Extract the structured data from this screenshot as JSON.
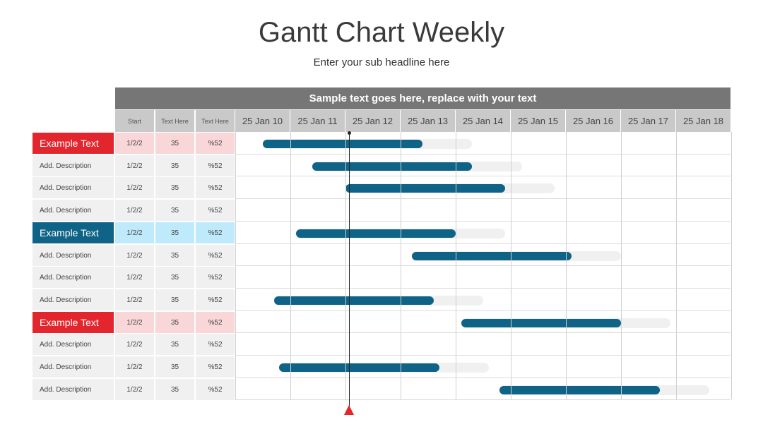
{
  "title": "Gantt Chart Weekly",
  "subtitle": "Enter your sub headline here",
  "banner": "Sample text goes here, replace with your text",
  "columns": [
    "Start",
    "Text Here",
    "Text Here"
  ],
  "colors": {
    "red": "#e3262d",
    "teal": "#0f6386",
    "pink_cells": "#f9d6d7",
    "blue_cells": "#bfeafb",
    "gray_cells": "#f0f0f0",
    "bar": "#0f6386",
    "bar_track": "#f0f0f0",
    "today_marker": "#e3262d"
  },
  "chart_data": {
    "type": "gantt",
    "x_ticks": [
      "25 Jan 10",
      "25 Jan 11",
      "25 Jan 12",
      "25 Jan 13",
      "25 Jan 14",
      "25 Jan 15",
      "25 Jan 16",
      "25 Jan 17",
      "25 Jan 18"
    ],
    "today_marker": "25 Jan 11",
    "rows": [
      {
        "label": "Example Text",
        "group": true,
        "color": "red",
        "start": "1/2/2",
        "v1": "35",
        "v2": "%52",
        "bar": [
          0.5,
          3.4
        ],
        "track": [
          0.5,
          4.3
        ]
      },
      {
        "label": "Add. Description",
        "group": false,
        "start": "1/2/2",
        "v1": "35",
        "v2": "%52",
        "bar": [
          1.4,
          4.3
        ],
        "track": [
          1.4,
          5.2
        ]
      },
      {
        "label": "Add. Description",
        "group": false,
        "start": "1/2/2",
        "v1": "35",
        "v2": "%52",
        "bar": [
          2.0,
          4.9
        ],
        "track": [
          2.0,
          5.8
        ]
      },
      {
        "label": "Add. Description",
        "group": false,
        "start": "1/2/2",
        "v1": "35",
        "v2": "%52",
        "bar": null,
        "track": null
      },
      {
        "label": "Example Text",
        "group": true,
        "color": "teal",
        "start": "1/2/2",
        "v1": "35",
        "v2": "%52",
        "bar": [
          1.1,
          4.0
        ],
        "track": [
          1.1,
          4.9
        ]
      },
      {
        "label": "Add. Description",
        "group": false,
        "start": "1/2/2",
        "v1": "35",
        "v2": "%52",
        "bar": [
          3.2,
          6.1
        ],
        "track": [
          3.2,
          7.0
        ]
      },
      {
        "label": "Add. Description",
        "group": false,
        "start": "1/2/2",
        "v1": "35",
        "v2": "%52",
        "bar": null,
        "track": null
      },
      {
        "label": "Add. Description",
        "group": false,
        "start": "1/2/2",
        "v1": "35",
        "v2": "%52",
        "bar": [
          0.7,
          3.6
        ],
        "track": [
          0.7,
          4.5
        ]
      },
      {
        "label": "Example Text",
        "group": true,
        "color": "red",
        "start": "1/2/2",
        "v1": "35",
        "v2": "%52",
        "bar": [
          4.1,
          7.0
        ],
        "track": [
          4.1,
          7.9
        ]
      },
      {
        "label": "Add. Description",
        "group": false,
        "start": "1/2/2",
        "v1": "35",
        "v2": "%52",
        "bar": null,
        "track": null
      },
      {
        "label": "Add. Description",
        "group": false,
        "start": "1/2/2",
        "v1": "35",
        "v2": "%52",
        "bar": [
          0.8,
          3.7
        ],
        "track": [
          0.8,
          4.6
        ]
      },
      {
        "label": "Add. Description",
        "group": false,
        "start": "1/2/2",
        "v1": "35",
        "v2": "%52",
        "bar": [
          4.8,
          7.7
        ],
        "track": [
          4.8,
          8.6
        ]
      }
    ]
  }
}
